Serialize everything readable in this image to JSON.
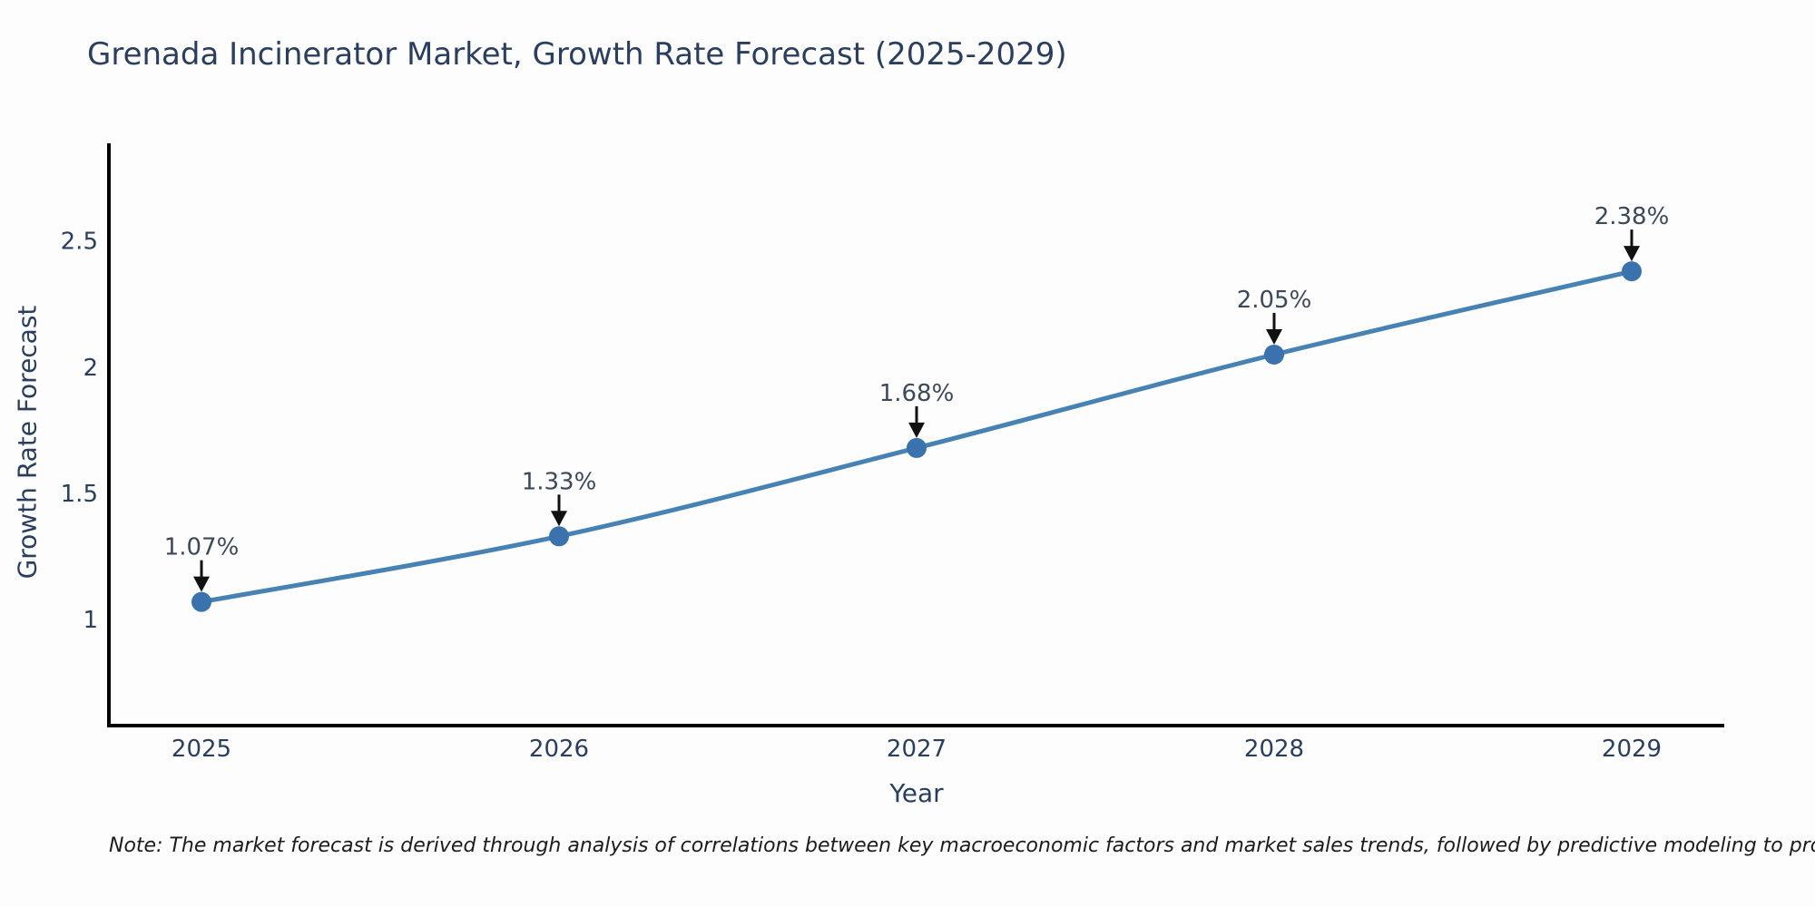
{
  "title": "Grenada Incinerator Market, Growth Rate Forecast (2025-2029)",
  "note": "Note: The market forecast is derived through analysis of correlations between key macroeconomic factors and market sales trends, followed by predictive modeling to project future sales",
  "chart_data": {
    "type": "line",
    "title": "Grenada Incinerator Market, Growth Rate Forecast (2025-2029)",
    "xlabel": "Year",
    "ylabel": "Growth Rate Forecast",
    "categories": [
      2025,
      2026,
      2027,
      2028,
      2029
    ],
    "values": [
      1.07,
      1.33,
      1.68,
      2.05,
      2.38
    ],
    "point_labels": [
      "1.07%",
      "1.33%",
      "1.68%",
      "2.05%",
      "2.38%"
    ],
    "yticks": [
      1,
      1.5,
      2,
      2.5
    ],
    "ylim": [
      0.58,
      2.88
    ],
    "grid": false,
    "legend": false,
    "line_color": "#4682b4",
    "marker_color": "#3a72ae",
    "axis_color": "#000000",
    "text_color": "#2a3f5f",
    "annotation_text_color": "#3d4858",
    "arrow_color": "#111111",
    "background_color": "#fdfdfd"
  }
}
